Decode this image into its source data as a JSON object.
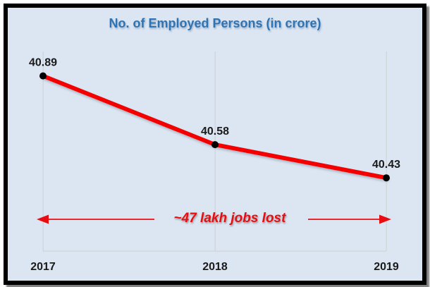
{
  "chart_data": {
    "type": "line",
    "title": "No. of Employed Persons (in crore)",
    "categories": [
      "2017",
      "2018",
      "2019"
    ],
    "series": [
      {
        "name": "No. of Employed Persons (in crore)",
        "values": [
          40.89,
          40.58,
          40.43
        ]
      }
    ],
    "data_labels": [
      "40.89",
      "40.58",
      "40.43"
    ],
    "xlabel": "",
    "ylabel": "",
    "ylim": [
      40.1,
      41.0
    ],
    "grid": "vertical category gridlines + bottom axis line",
    "legend": "none",
    "marker": "filled black circle",
    "annotation": {
      "text": "~47 lakh jobs lost",
      "type": "double-headed horizontal arrow",
      "between": [
        "2017",
        "2019"
      ]
    }
  },
  "colors": {
    "background": "#dce6f2",
    "border": "#000000",
    "title": "#2e74b5",
    "line": "#f50000",
    "marker": "#000000",
    "label": "#1a1a1a",
    "gridline": "#d2d7dc",
    "annotation": "#e90d12"
  }
}
